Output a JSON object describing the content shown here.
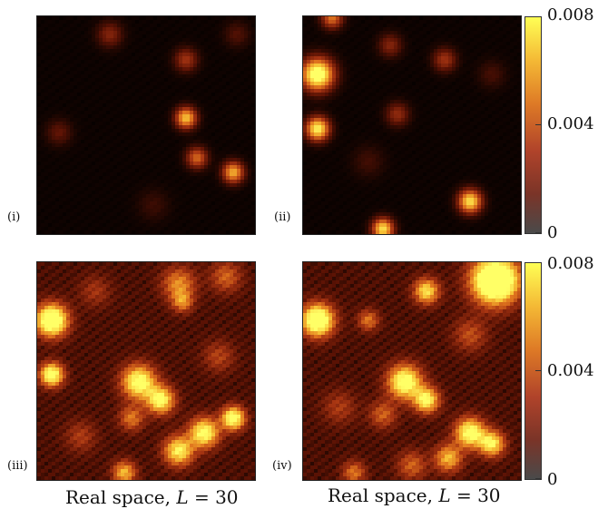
{
  "chart_data": {
    "type": "heatmap",
    "colormap": [
      "#000000",
      "#5a1204",
      "#a63412",
      "#e0751e",
      "#f7c135",
      "#ffff66"
    ],
    "colorbar": {
      "range": [
        0,
        0.008
      ],
      "ticks": [
        "0.008",
        "0.004",
        "0"
      ]
    },
    "captions": [
      {
        "prefix": "Real space, ",
        "var": "L",
        "suffix": " = 30"
      },
      {
        "prefix": "Real space, ",
        "var": "L",
        "suffix": " = 30"
      }
    ],
    "panels": [
      {
        "label": "(i)",
        "grid": [
          30,
          30
        ],
        "background": 0.0002,
        "blobs": [
          {
            "x": 10,
            "y": 2.5,
            "value": 0.0022,
            "spread": 1.2
          },
          {
            "x": 20.5,
            "y": 6.0,
            "value": 0.0028,
            "spread": 1.1
          },
          {
            "x": 20.5,
            "y": 14.0,
            "value": 0.0062,
            "spread": 1.0
          },
          {
            "x": 22,
            "y": 19.5,
            "value": 0.0042,
            "spread": 1.0
          },
          {
            "x": 27,
            "y": 21.5,
            "value": 0.0058,
            "spread": 1.0
          },
          {
            "x": 3,
            "y": 16,
            "value": 0.0015,
            "spread": 1.2
          },
          {
            "x": 27.5,
            "y": 2.5,
            "value": 0.0012,
            "spread": 1.2
          },
          {
            "x": 16,
            "y": 26,
            "value": 0.0008,
            "spread": 1.5
          }
        ]
      },
      {
        "label": "(ii)",
        "grid": [
          30,
          30
        ],
        "background": 0.0002,
        "blobs": [
          {
            "x": 2,
            "y": 8,
            "value": 0.009,
            "spread": 1.5
          },
          {
            "x": 2,
            "y": 15.5,
            "value": 0.0075,
            "spread": 1.1
          },
          {
            "x": 23,
            "y": 25.5,
            "value": 0.007,
            "spread": 1.1
          },
          {
            "x": 11,
            "y": 29.3,
            "value": 0.007,
            "spread": 1.0
          },
          {
            "x": 4,
            "y": 0.2,
            "value": 0.0045,
            "spread": 1.0
          },
          {
            "x": 12,
            "y": 4,
            "value": 0.0022,
            "spread": 1.1
          },
          {
            "x": 19.5,
            "y": 6,
            "value": 0.0028,
            "spread": 1.1
          },
          {
            "x": 13,
            "y": 13.5,
            "value": 0.0025,
            "spread": 1.1
          },
          {
            "x": 26,
            "y": 8,
            "value": 0.001,
            "spread": 1.3
          },
          {
            "x": 9,
            "y": 20,
            "value": 0.0009,
            "spread": 1.5
          }
        ]
      },
      {
        "label": "(iii)",
        "grid": [
          30,
          30
        ],
        "background": 0.0012,
        "blobs": [
          {
            "x": 2,
            "y": 8,
            "value": 0.0095,
            "spread": 1.5
          },
          {
            "x": 2,
            "y": 15.5,
            "value": 0.008,
            "spread": 1.1
          },
          {
            "x": 14,
            "y": 16.5,
            "value": 0.0075,
            "spread": 1.6
          },
          {
            "x": 17,
            "y": 19,
            "value": 0.007,
            "spread": 1.3
          },
          {
            "x": 27,
            "y": 21.5,
            "value": 0.0078,
            "spread": 1.1
          },
          {
            "x": 23,
            "y": 23.5,
            "value": 0.0072,
            "spread": 1.4
          },
          {
            "x": 19.5,
            "y": 26,
            "value": 0.0065,
            "spread": 1.4
          },
          {
            "x": 12,
            "y": 29,
            "value": 0.005,
            "spread": 1.1
          },
          {
            "x": 19.5,
            "y": 3,
            "value": 0.004,
            "spread": 1.6
          },
          {
            "x": 20,
            "y": 5.5,
            "value": 0.0035,
            "spread": 1.0
          },
          {
            "x": 26,
            "y": 2,
            "value": 0.003,
            "spread": 1.5
          },
          {
            "x": 13,
            "y": 21.5,
            "value": 0.0035,
            "spread": 1.2
          },
          {
            "x": 6,
            "y": 24,
            "value": 0.002,
            "spread": 1.5
          },
          {
            "x": 25,
            "y": 13,
            "value": 0.0022,
            "spread": 1.5
          },
          {
            "x": 8,
            "y": 4,
            "value": 0.0018,
            "spread": 1.5
          }
        ]
      },
      {
        "label": "(iv)",
        "grid": [
          30,
          30
        ],
        "background": 0.0012,
        "blobs": [
          {
            "x": 26.5,
            "y": 2.5,
            "value": 0.0115,
            "spread": 2.2
          },
          {
            "x": 2,
            "y": 8,
            "value": 0.0095,
            "spread": 1.5
          },
          {
            "x": 17,
            "y": 4,
            "value": 0.006,
            "spread": 1.2
          },
          {
            "x": 9,
            "y": 8,
            "value": 0.0035,
            "spread": 1.0
          },
          {
            "x": 14,
            "y": 16.5,
            "value": 0.0078,
            "spread": 1.6
          },
          {
            "x": 17,
            "y": 19,
            "value": 0.0068,
            "spread": 1.2
          },
          {
            "x": 23,
            "y": 23.5,
            "value": 0.0075,
            "spread": 1.4
          },
          {
            "x": 26,
            "y": 25,
            "value": 0.0065,
            "spread": 1.2
          },
          {
            "x": 20,
            "y": 27,
            "value": 0.005,
            "spread": 1.3
          },
          {
            "x": 11,
            "y": 21,
            "value": 0.003,
            "spread": 1.3
          },
          {
            "x": 5,
            "y": 20,
            "value": 0.002,
            "spread": 1.6
          },
          {
            "x": 7,
            "y": 29,
            "value": 0.0035,
            "spread": 1.1
          },
          {
            "x": 23,
            "y": 10,
            "value": 0.0025,
            "spread": 1.6
          },
          {
            "x": 15,
            "y": 28,
            "value": 0.003,
            "spread": 1.4
          }
        ]
      }
    ]
  }
}
